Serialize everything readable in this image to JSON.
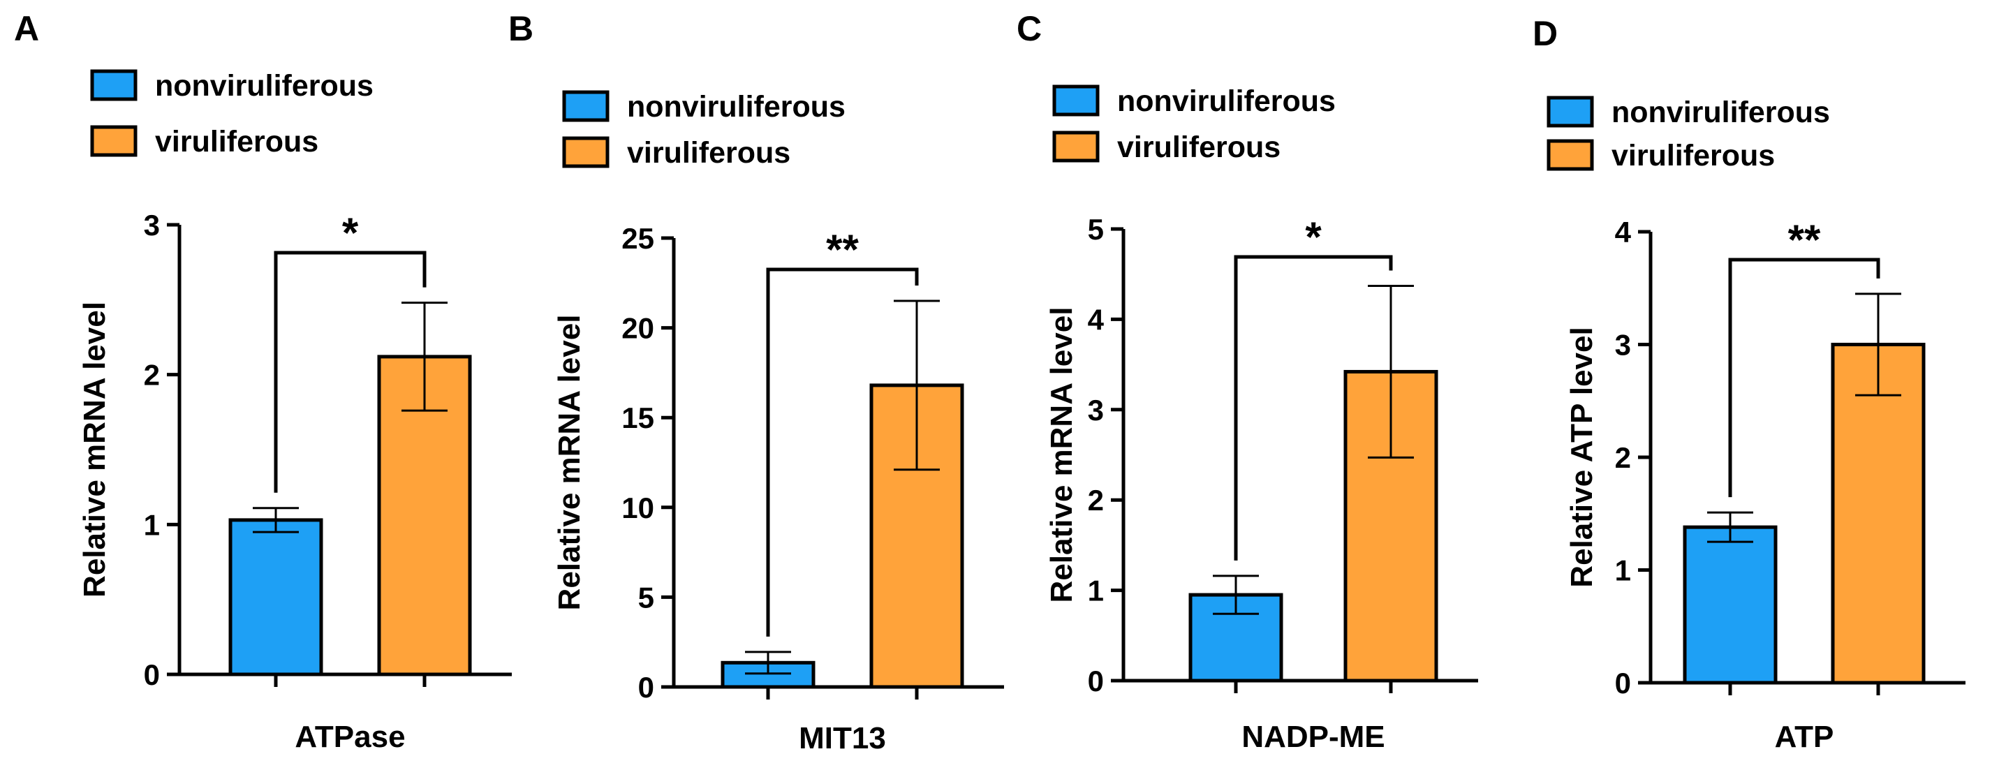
{
  "figure": {
    "legend_labels": [
      "nonviruliferous",
      "viruliferous"
    ],
    "colors": {
      "nonviruliferous": "#1EA0F5",
      "viruliferous": "#FFA33A",
      "stroke": "#000000"
    }
  },
  "chart_data": [
    {
      "panel": "A",
      "type": "bar",
      "title": "",
      "xlabel": "ATPase",
      "ylabel": "Relative mRNA level",
      "ylim": [
        0,
        3
      ],
      "yticks": [
        0,
        1,
        2,
        3
      ],
      "legend": "top-left",
      "categories": [
        "nonviruliferous",
        "viruliferous"
      ],
      "values": [
        1.03,
        2.12
      ],
      "errors": [
        0.08,
        0.36
      ],
      "significance": "*"
    },
    {
      "panel": "B",
      "type": "bar",
      "title": "",
      "xlabel": "MIT13",
      "ylabel": "Relative mRNA level",
      "ylim": [
        0,
        25
      ],
      "yticks": [
        0,
        5,
        10,
        15,
        20,
        25
      ],
      "legend": "top-left",
      "categories": [
        "nonviruliferous",
        "viruliferous"
      ],
      "values": [
        1.35,
        16.8
      ],
      "errors": [
        0.6,
        4.7
      ],
      "significance": "**"
    },
    {
      "panel": "C",
      "type": "bar",
      "title": "",
      "xlabel": "NADP-ME",
      "ylabel": "Relative mRNA level",
      "ylim": [
        0,
        5
      ],
      "yticks": [
        0,
        1,
        2,
        3,
        4,
        5
      ],
      "legend": "top-left",
      "categories": [
        "nonviruliferous",
        "viruliferous"
      ],
      "values": [
        0.95,
        3.42
      ],
      "errors": [
        0.21,
        0.95
      ],
      "significance": "*"
    },
    {
      "panel": "D",
      "type": "bar",
      "title": "",
      "xlabel": "ATP",
      "ylabel": "Relative ATP level",
      "ylim": [
        0,
        4
      ],
      "yticks": [
        0,
        1,
        2,
        3,
        4
      ],
      "legend": "top-left",
      "categories": [
        "nonviruliferous",
        "viruliferous"
      ],
      "values": [
        1.38,
        3.0
      ],
      "errors": [
        0.13,
        0.45
      ],
      "significance": "**"
    }
  ]
}
